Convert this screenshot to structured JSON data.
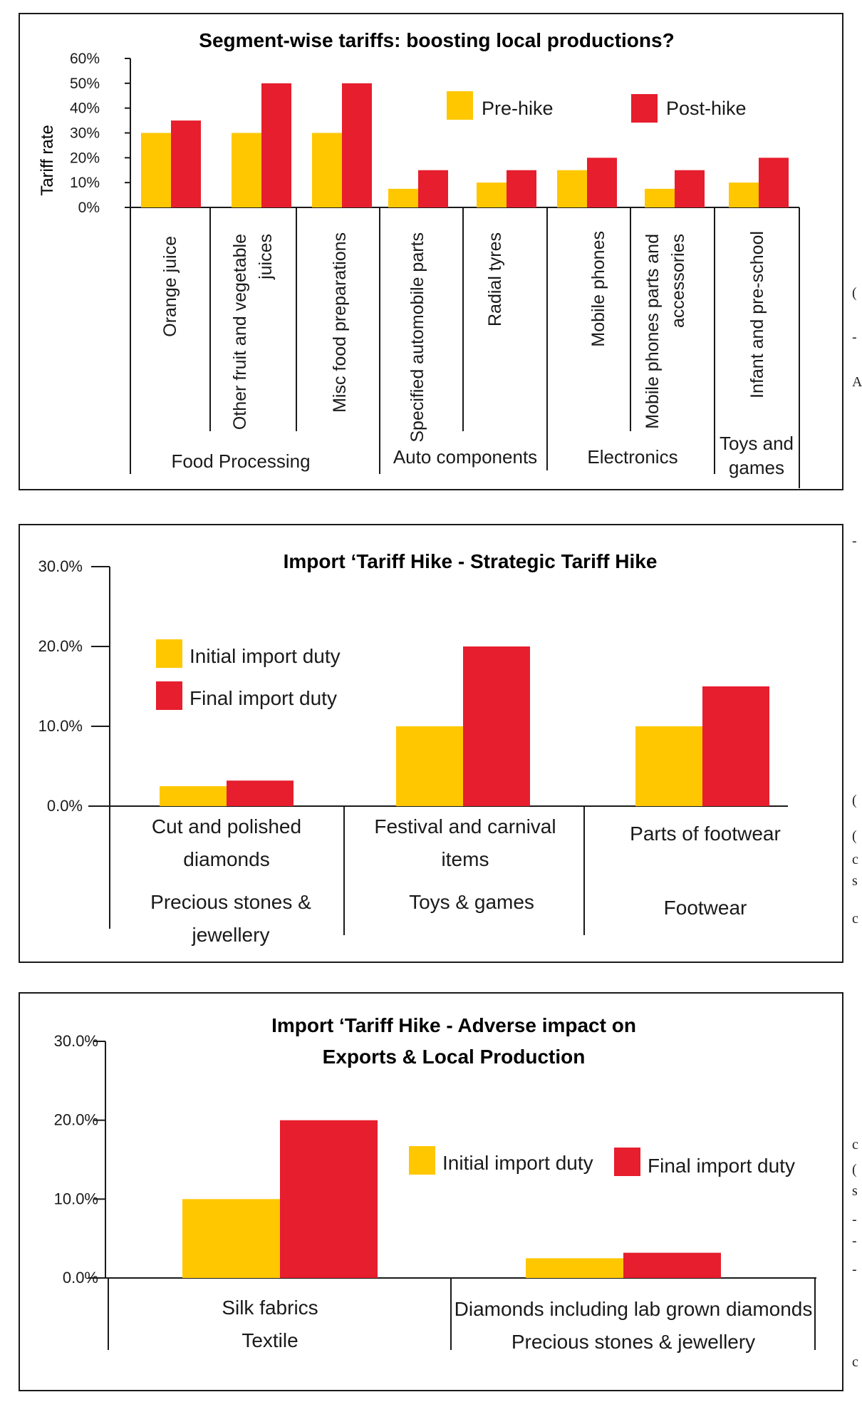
{
  "colors": {
    "pre": "#FFC700",
    "post": "#E61E2D",
    "axis": "#1a1a1a"
  },
  "chart_data": [
    {
      "type": "bar",
      "title": "Segment-wise tariffs: boosting local productions?",
      "ylabel": "Tariff rate",
      "ylim": [
        0,
        60
      ],
      "yticks": [
        "60%",
        "50%",
        "40%",
        "30%",
        "20%",
        "10%",
        "0%"
      ],
      "categories": [
        "Orange juice",
        "Other fruit and vegetable juices",
        "Misc food preparations",
        "Specified automobile parts",
        "Radial tyres",
        "Mobile phones",
        "Mobile phones parts and accessories",
        "Infant and pre-school"
      ],
      "groups": [
        {
          "name": "Food Processing"
        },
        {
          "name": "Auto components"
        },
        {
          "name": "Electronics"
        },
        {
          "name": "Toys and games"
        }
      ],
      "series": [
        {
          "name": "Pre-hike",
          "values": [
            30,
            30,
            30,
            7.5,
            10,
            15,
            7.5,
            10
          ]
        },
        {
          "name": "Post-hike",
          "values": [
            35,
            50,
            50,
            15,
            15,
            20,
            15,
            20
          ]
        }
      ],
      "legend": "top-right"
    },
    {
      "type": "bar",
      "title": "Import ‘Tariff Hike - Strategic Tariff Hike",
      "ylim": [
        0,
        30
      ],
      "yticks": [
        "30.0%",
        "20.0%",
        "10.0%",
        "0.0%"
      ],
      "categories": [
        "Cut and polished diamonds",
        "Festival and carnival items",
        "Parts of footwear"
      ],
      "groups": [
        {
          "name": "Precious stones & jewellery"
        },
        {
          "name": "Toys & games"
        },
        {
          "name": "Footwear"
        }
      ],
      "series": [
        {
          "name": "Initial import duty",
          "values": [
            2.5,
            10,
            10
          ]
        },
        {
          "name": "Final import duty",
          "values": [
            3.2,
            20,
            15
          ]
        }
      ],
      "legend": "top-left"
    },
    {
      "type": "bar",
      "title_lines": [
        "Import ‘Tariff Hike - Adverse impact on",
        "Exports & Local Production"
      ],
      "ylim": [
        0,
        30
      ],
      "yticks": [
        "30.0%",
        "20.0%",
        "10.0%",
        "0.0%"
      ],
      "categories": [
        "Silk fabrics",
        "Diamonds including lab grown diamonds"
      ],
      "groups": [
        {
          "name": "Textile"
        },
        {
          "name": "Precious stones & jewellery"
        }
      ],
      "series": [
        {
          "name": "Initial import duty",
          "values": [
            10,
            2.5
          ]
        },
        {
          "name": "Final import duty",
          "values": [
            20,
            3.2
          ]
        }
      ],
      "legend": "right"
    }
  ],
  "edge_glyphs": [
    "(",
    "-",
    "A",
    "-",
    "(",
    "(",
    "c",
    "s",
    "c",
    "c",
    "(",
    "s",
    "-",
    "-",
    "-",
    "c"
  ]
}
